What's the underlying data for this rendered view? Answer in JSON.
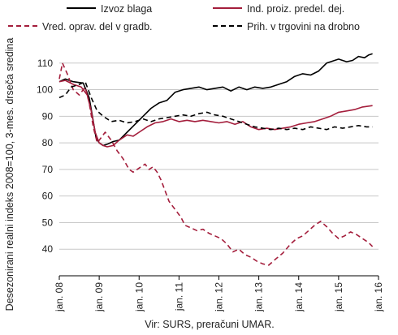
{
  "chart_data": {
    "type": "line",
    "ylabel": "Desezonirani realni indeks 2008=100, 3-mes. drseča sredina",
    "ylim": [
      30,
      120
    ],
    "yticks": [
      40,
      50,
      60,
      70,
      80,
      90,
      100,
      110
    ],
    "xlim": [
      2008,
      2016
    ],
    "xticks": [
      {
        "value": 2008,
        "label": "jan. 08"
      },
      {
        "value": 2009,
        "label": "jan. 09"
      },
      {
        "value": 2010,
        "label": "jan. 10"
      },
      {
        "value": 2011,
        "label": "jan. 11"
      },
      {
        "value": 2012,
        "label": "jan. 12"
      },
      {
        "value": 2013,
        "label": "jan. 13"
      },
      {
        "value": 2014,
        "label": "jan. 14"
      },
      {
        "value": 2015,
        "label": "jan. 15"
      },
      {
        "value": 2016,
        "label": "jan. 16"
      }
    ],
    "source": "Vir: SURS, preračuni UMAR.",
    "grid": "horizontal",
    "legend_position": "top",
    "series": [
      {
        "name": "Izvoz blaga",
        "color": "#000000",
        "style": "solid",
        "points": [
          [
            2008.0,
            103
          ],
          [
            2008.15,
            104
          ],
          [
            2008.35,
            103
          ],
          [
            2008.6,
            102.5
          ],
          [
            2008.75,
            97
          ],
          [
            2008.83,
            90
          ],
          [
            2008.92,
            82
          ],
          [
            2009.0,
            80
          ],
          [
            2009.1,
            79
          ],
          [
            2009.2,
            79.5
          ],
          [
            2009.35,
            80.5
          ],
          [
            2009.5,
            81
          ],
          [
            2009.7,
            84
          ],
          [
            2009.9,
            87
          ],
          [
            2010.1,
            90
          ],
          [
            2010.3,
            93
          ],
          [
            2010.5,
            95
          ],
          [
            2010.7,
            96
          ],
          [
            2010.9,
            99
          ],
          [
            2011.1,
            100
          ],
          [
            2011.3,
            100.5
          ],
          [
            2011.5,
            101
          ],
          [
            2011.7,
            100
          ],
          [
            2011.9,
            100.5
          ],
          [
            2012.1,
            101
          ],
          [
            2012.3,
            99.5
          ],
          [
            2012.5,
            101
          ],
          [
            2012.7,
            100
          ],
          [
            2012.9,
            101
          ],
          [
            2013.1,
            100.5
          ],
          [
            2013.3,
            101
          ],
          [
            2013.5,
            102
          ],
          [
            2013.7,
            103
          ],
          [
            2013.9,
            105
          ],
          [
            2014.1,
            106
          ],
          [
            2014.3,
            105.5
          ],
          [
            2014.5,
            107
          ],
          [
            2014.7,
            110
          ],
          [
            2014.9,
            111
          ],
          [
            2015.0,
            111.5
          ],
          [
            2015.1,
            111
          ],
          [
            2015.2,
            110.5
          ],
          [
            2015.35,
            111
          ],
          [
            2015.5,
            112.5
          ],
          [
            2015.65,
            112
          ],
          [
            2015.75,
            113
          ],
          [
            2015.85,
            113.5
          ]
        ]
      },
      {
        "name": "Ind. proiz. predel. dej.",
        "color": "#a41e3c",
        "style": "solid",
        "points": [
          [
            2008.0,
            103
          ],
          [
            2008.15,
            103.5
          ],
          [
            2008.35,
            102
          ],
          [
            2008.55,
            101
          ],
          [
            2008.7,
            98
          ],
          [
            2008.8,
            92
          ],
          [
            2008.9,
            84
          ],
          [
            2009.0,
            80
          ],
          [
            2009.1,
            79
          ],
          [
            2009.2,
            78.5
          ],
          [
            2009.35,
            79
          ],
          [
            2009.5,
            81
          ],
          [
            2009.7,
            83
          ],
          [
            2009.85,
            82.5
          ],
          [
            2010.0,
            84
          ],
          [
            2010.2,
            86
          ],
          [
            2010.4,
            87.5
          ],
          [
            2010.6,
            88
          ],
          [
            2010.8,
            89
          ],
          [
            2011.0,
            88
          ],
          [
            2011.2,
            88.5
          ],
          [
            2011.4,
            88
          ],
          [
            2011.6,
            88.5
          ],
          [
            2011.8,
            88
          ],
          [
            2012.0,
            87.5
          ],
          [
            2012.2,
            88
          ],
          [
            2012.4,
            87
          ],
          [
            2012.6,
            88
          ],
          [
            2012.8,
            86
          ],
          [
            2013.0,
            85
          ],
          [
            2013.2,
            85.5
          ],
          [
            2013.4,
            85
          ],
          [
            2013.6,
            85.5
          ],
          [
            2013.8,
            86
          ],
          [
            2014.0,
            87
          ],
          [
            2014.2,
            87.5
          ],
          [
            2014.4,
            88
          ],
          [
            2014.6,
            89
          ],
          [
            2014.8,
            90
          ],
          [
            2015.0,
            91.5
          ],
          [
            2015.2,
            92
          ],
          [
            2015.4,
            92.5
          ],
          [
            2015.6,
            93.5
          ],
          [
            2015.85,
            94
          ]
        ]
      },
      {
        "name": "Vred. oprav. del v gradb.",
        "color": "#a41e3c",
        "style": "dashed",
        "points": [
          [
            2008.0,
            104
          ],
          [
            2008.08,
            110
          ],
          [
            2008.2,
            106
          ],
          [
            2008.35,
            100
          ],
          [
            2008.5,
            98
          ],
          [
            2008.65,
            101
          ],
          [
            2008.75,
            95
          ],
          [
            2008.85,
            86
          ],
          [
            2008.95,
            80
          ],
          [
            2009.05,
            82
          ],
          [
            2009.15,
            84
          ],
          [
            2009.3,
            81
          ],
          [
            2009.45,
            77
          ],
          [
            2009.6,
            74
          ],
          [
            2009.75,
            70
          ],
          [
            2009.85,
            69
          ],
          [
            2009.95,
            70
          ],
          [
            2010.05,
            71
          ],
          [
            2010.15,
            72
          ],
          [
            2010.25,
            70
          ],
          [
            2010.35,
            71
          ],
          [
            2010.45,
            69
          ],
          [
            2010.55,
            66
          ],
          [
            2010.65,
            62
          ],
          [
            2010.75,
            58
          ],
          [
            2010.85,
            56
          ],
          [
            2010.95,
            54
          ],
          [
            2011.05,
            52
          ],
          [
            2011.15,
            49
          ],
          [
            2011.3,
            48
          ],
          [
            2011.45,
            47
          ],
          [
            2011.6,
            47.5
          ],
          [
            2011.75,
            46
          ],
          [
            2011.9,
            45
          ],
          [
            2012.05,
            44
          ],
          [
            2012.2,
            42
          ],
          [
            2012.35,
            39
          ],
          [
            2012.5,
            40
          ],
          [
            2012.65,
            38
          ],
          [
            2012.8,
            37
          ],
          [
            2012.95,
            35.5
          ],
          [
            2013.1,
            34.5
          ],
          [
            2013.25,
            34
          ],
          [
            2013.4,
            36
          ],
          [
            2013.6,
            38.5
          ],
          [
            2013.8,
            42
          ],
          [
            2013.95,
            44
          ],
          [
            2014.1,
            45
          ],
          [
            2014.25,
            47
          ],
          [
            2014.4,
            49
          ],
          [
            2014.55,
            50.5
          ],
          [
            2014.7,
            48.5
          ],
          [
            2014.85,
            46
          ],
          [
            2015.0,
            44
          ],
          [
            2015.15,
            45
          ],
          [
            2015.3,
            46.5
          ],
          [
            2015.45,
            45.5
          ],
          [
            2015.6,
            44
          ],
          [
            2015.75,
            42.5
          ],
          [
            2015.85,
            41
          ]
        ]
      },
      {
        "name": "Prih. v trgovini na drobno",
        "color": "#000000",
        "style": "dashed",
        "points": [
          [
            2008.0,
            97
          ],
          [
            2008.15,
            98
          ],
          [
            2008.3,
            101
          ],
          [
            2008.5,
            102
          ],
          [
            2008.65,
            103
          ],
          [
            2008.8,
            97
          ],
          [
            2008.95,
            92
          ],
          [
            2009.1,
            90
          ],
          [
            2009.3,
            88
          ],
          [
            2009.5,
            88.5
          ],
          [
            2009.7,
            87.5
          ],
          [
            2009.9,
            88
          ],
          [
            2010.1,
            89
          ],
          [
            2010.3,
            88
          ],
          [
            2010.5,
            89
          ],
          [
            2010.7,
            89.5
          ],
          [
            2010.9,
            90
          ],
          [
            2011.1,
            90.5
          ],
          [
            2011.3,
            90
          ],
          [
            2011.5,
            91
          ],
          [
            2011.7,
            91.5
          ],
          [
            2011.9,
            90.5
          ],
          [
            2012.1,
            90
          ],
          [
            2012.3,
            89
          ],
          [
            2012.5,
            88
          ],
          [
            2012.7,
            87
          ],
          [
            2012.9,
            86
          ],
          [
            2013.1,
            85.5
          ],
          [
            2013.3,
            85
          ],
          [
            2013.5,
            85.5
          ],
          [
            2013.7,
            85
          ],
          [
            2013.9,
            85.5
          ],
          [
            2014.1,
            85
          ],
          [
            2014.3,
            86
          ],
          [
            2014.5,
            85.5
          ],
          [
            2014.7,
            85
          ],
          [
            2014.9,
            86
          ],
          [
            2015.1,
            85.5
          ],
          [
            2015.3,
            86
          ],
          [
            2015.5,
            86.5
          ],
          [
            2015.7,
            86
          ],
          [
            2015.85,
            86
          ]
        ]
      }
    ]
  }
}
